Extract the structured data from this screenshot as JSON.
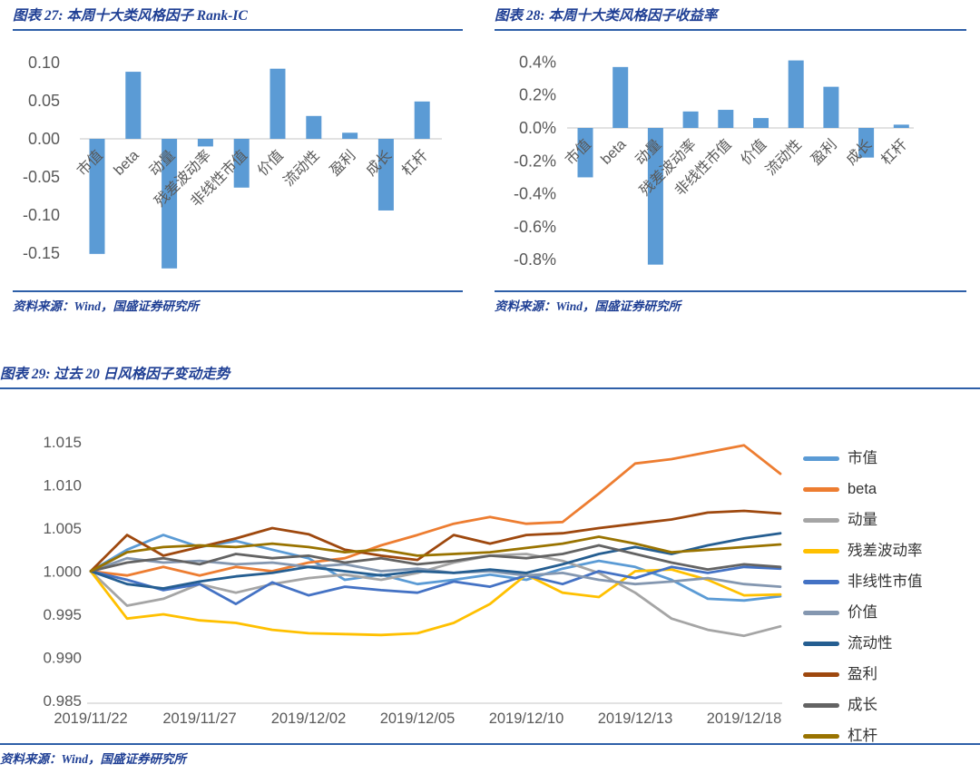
{
  "page": {
    "accent_blue": "#1F3F94",
    "rule_blue": "#2E5FA8",
    "axis_text_color": "#595959",
    "background": "#ffffff"
  },
  "figures": [
    {
      "title": "图表 27:  本周十大类风格因子 Rank-IC",
      "source": "资料来源：Wind，国盛证券研究所"
    },
    {
      "title": "图表 28:  本周十大类风格因子收益率",
      "source": "资料来源：Wind，国盛证券研究所"
    },
    {
      "title": "图表 29:  过去 20 日风格因子变动走势",
      "source": "资料来源：Wind，国盛证券研究所"
    }
  ],
  "chart_data": [
    {
      "type": "bar",
      "title": "本周十大类风格因子 Rank-IC",
      "categories": [
        "市值",
        "beta",
        "动量",
        "残差波动率",
        "非线性市值",
        "价值",
        "流动性",
        "盈利",
        "成长",
        "杠杆"
      ],
      "values": [
        -0.151,
        0.088,
        -0.17,
        -0.01,
        -0.064,
        0.092,
        0.03,
        0.008,
        -0.094,
        0.049
      ],
      "bar_color": "#5B9BD5",
      "yticks": [
        0.1,
        0.05,
        0.0,
        -0.05,
        -0.1,
        -0.15
      ],
      "ytick_labels": [
        "0.10",
        "0.05",
        "0.00",
        "-0.05",
        "-0.10",
        "-0.15"
      ],
      "ylim": [
        -0.19,
        0.115
      ],
      "grid": false,
      "xlabel": "",
      "ylabel": ""
    },
    {
      "type": "bar",
      "title": "本周十大类风格因子收益率",
      "unit": "%",
      "categories": [
        "市值",
        "beta",
        "动量",
        "残差波动率",
        "非线性市值",
        "价值",
        "流动性",
        "盈利",
        "成长",
        "杠杆"
      ],
      "values": [
        -0.3,
        0.37,
        -0.83,
        0.1,
        0.11,
        0.06,
        0.41,
        0.25,
        -0.18,
        0.02
      ],
      "bar_color": "#5B9BD5",
      "yticks": [
        0.4,
        0.2,
        0.0,
        -0.2,
        -0.4,
        -0.6,
        -0.8
      ],
      "ytick_labels": [
        "0.4%",
        "0.2%",
        "0.0%",
        "-0.2%",
        "-0.4%",
        "-0.6%",
        "-0.8%"
      ],
      "ylim": [
        -0.95,
        0.5
      ],
      "grid": false,
      "xlabel": "",
      "ylabel": ""
    },
    {
      "type": "line",
      "title": "过去 20 日风格因子变动趋势",
      "n_points": 20,
      "xtick_indices": [
        0,
        3,
        6,
        9,
        12,
        15,
        18
      ],
      "xtick_labels": [
        "2019/11/22",
        "2019/11/27",
        "2019/12/02",
        "2019/12/05",
        "2019/12/10",
        "2019/12/13",
        "2019/12/18"
      ],
      "yticks": [
        1.015,
        1.01,
        1.005,
        1.0,
        0.995,
        0.99,
        0.985
      ],
      "ytick_labels": [
        "1.015",
        "1.010",
        "1.005",
        "1.000",
        "0.995",
        "0.990",
        "0.985"
      ],
      "ylim": [
        0.9845,
        1.0175
      ],
      "grid": false,
      "legend_position": "right",
      "series": [
        {
          "name": "市值",
          "color": "#5B9BD5",
          "values": [
            1.0,
            1.0025,
            1.0042,
            1.0028,
            1.0035,
            1.0025,
            1.0015,
            0.999,
            0.9996,
            0.9985,
            0.999,
            0.9996,
            0.999,
            1.0003,
            1.0012,
            1.0005,
            0.999,
            0.9968,
            0.9966,
            0.9971
          ]
        },
        {
          "name": "beta",
          "color": "#ED7D31",
          "values": [
            1.0,
            0.9995,
            1.0005,
            0.9995,
            1.0005,
            1.0,
            1.001,
            1.0015,
            1.003,
            1.0042,
            1.0055,
            1.0063,
            1.0055,
            1.0057,
            1.009,
            1.0125,
            1.013,
            1.0138,
            1.0146,
            1.0113
          ]
        },
        {
          "name": "动量",
          "color": "#A5A5A5",
          "values": [
            1.0,
            0.996,
            0.9968,
            0.9985,
            0.9975,
            0.9985,
            0.9992,
            0.9996,
            0.999,
            0.9998,
            1.001,
            1.0018,
            1.002,
            1.0012,
            0.9998,
            0.9975,
            0.9945,
            0.9932,
            0.9925,
            0.9936
          ]
        },
        {
          "name": "残差波动率",
          "color": "#FFC000",
          "values": [
            1.0,
            0.9945,
            0.995,
            0.9943,
            0.994,
            0.9932,
            0.9928,
            0.9927,
            0.9926,
            0.9928,
            0.994,
            0.9962,
            0.9996,
            0.9975,
            0.997,
            1.0,
            1.0002,
            0.999,
            0.9972,
            0.9973
          ]
        },
        {
          "name": "非线性市值",
          "color": "#4472C4",
          "values": [
            1.0,
            0.999,
            0.9978,
            0.9985,
            0.9962,
            0.9987,
            0.9972,
            0.9982,
            0.9978,
            0.9975,
            0.9988,
            0.9982,
            0.9995,
            0.9985,
            1.0,
            0.9992,
            1.0005,
            0.9998,
            1.0005,
            1.0003
          ]
        },
        {
          "name": "价值",
          "color": "#8497B0",
          "values": [
            1.0,
            1.0015,
            1.001,
            1.0012,
            1.0008,
            1.001,
            1.0005,
            1.0008,
            1.0,
            1.0003,
            0.9998,
            1.0,
            0.9995,
            0.9998,
            0.999,
            0.9985,
            0.9988,
            0.9992,
            0.9985,
            0.9982
          ]
        },
        {
          "name": "流动性",
          "color": "#255E91",
          "values": [
            1.0,
            0.9985,
            0.998,
            0.9988,
            0.9994,
            0.9998,
            1.0005,
            1.0,
            0.9995,
            1.0,
            0.9998,
            1.0002,
            0.9998,
            1.0008,
            1.002,
            1.0028,
            1.002,
            1.003,
            1.0038,
            1.0044
          ]
        },
        {
          "name": "盈利",
          "color": "#9E480E",
          "values": [
            1.0,
            1.0042,
            1.0018,
            1.0028,
            1.0038,
            1.005,
            1.0043,
            1.0025,
            1.0018,
            1.0013,
            1.0042,
            1.0032,
            1.0042,
            1.0044,
            1.005,
            1.0055,
            1.006,
            1.0068,
            1.007,
            1.0067
          ]
        },
        {
          "name": "成长",
          "color": "#636363",
          "values": [
            1.0,
            1.001,
            1.0015,
            1.0008,
            1.002,
            1.0015,
            1.0018,
            1.001,
            1.0015,
            1.0008,
            1.0012,
            1.0018,
            1.0015,
            1.002,
            1.003,
            1.002,
            1.001,
            1.0002,
            1.0008,
            1.0005
          ]
        },
        {
          "name": "杠杆",
          "color": "#997300",
          "values": [
            1.0,
            1.0022,
            1.0028,
            1.003,
            1.0028,
            1.0032,
            1.0028,
            1.0022,
            1.0025,
            1.0018,
            1.002,
            1.0022,
            1.0027,
            1.0032,
            1.004,
            1.0032,
            1.0022,
            1.0025,
            1.0028,
            1.0031
          ]
        }
      ]
    }
  ]
}
